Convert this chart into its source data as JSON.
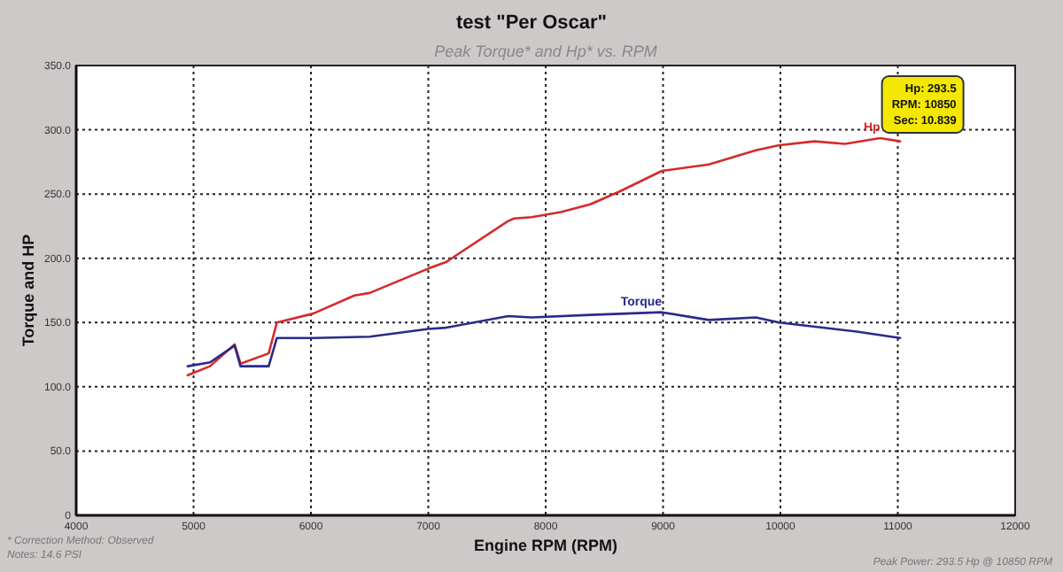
{
  "chart_data": {
    "type": "line",
    "title": "test \"Per Oscar\"",
    "subtitle": "Peak Torque* and Hp* vs. RPM",
    "xlabel": "Engine RPM (RPM)",
    "ylabel": "Torque and HP",
    "xlim": [
      4000,
      12000
    ],
    "xticks": [
      4000,
      5000,
      6000,
      7000,
      8000,
      9000,
      10000,
      11000,
      12000
    ],
    "ylim": [
      0,
      350
    ],
    "yticks": [
      {
        "value": 0,
        "label": "0"
      },
      {
        "value": 50,
        "label": "50.0"
      },
      {
        "value": 100,
        "label": "100.0"
      },
      {
        "value": 150,
        "label": "150.0"
      },
      {
        "value": 200,
        "label": "200.0"
      },
      {
        "value": 250,
        "label": "250.0"
      },
      {
        "value": 300,
        "label": "300.0"
      },
      {
        "value": 350,
        "label": "350.0"
      }
    ],
    "grid": true,
    "marker": "none",
    "line_style": "solid",
    "series": [
      {
        "name": "Hp",
        "color": "#d42a2a",
        "x": [
          4950,
          5140,
          5350,
          5400,
          5640,
          5710,
          6020,
          6370,
          6500,
          7000,
          7150,
          7680,
          7730,
          7880,
          8130,
          8380,
          8630,
          8990,
          9390,
          9790,
          9990,
          10290,
          10550,
          10850,
          11020
        ],
        "values": [
          109,
          116,
          133,
          118,
          126,
          150,
          157,
          171,
          173,
          192,
          197,
          229,
          231,
          232,
          236,
          242,
          252,
          268,
          273,
          284,
          288,
          291,
          289,
          293.5,
          291
        ]
      },
      {
        "name": "Torque",
        "color": "#2a2a8a",
        "x": [
          4950,
          5140,
          5350,
          5400,
          5640,
          5710,
          6020,
          6500,
          7000,
          7150,
          7680,
          7880,
          8380,
          8990,
          9390,
          9790,
          9990,
          10650,
          11020
        ],
        "values": [
          116,
          119,
          132,
          116,
          116,
          138,
          138,
          139,
          145,
          146,
          155,
          154,
          156,
          158,
          152,
          154,
          150,
          143,
          138
        ]
      }
    ],
    "annotations": [
      {
        "text": "Hp: 293.5\nRPM: 10850\nSec: 10.839",
        "x": 10850,
        "y": 293.5
      },
      "* Correction Method: Observed",
      "Notes: 14.6 PSI",
      "Peak Power: 293.5 Hp @ 10850 RPM"
    ]
  }
}
